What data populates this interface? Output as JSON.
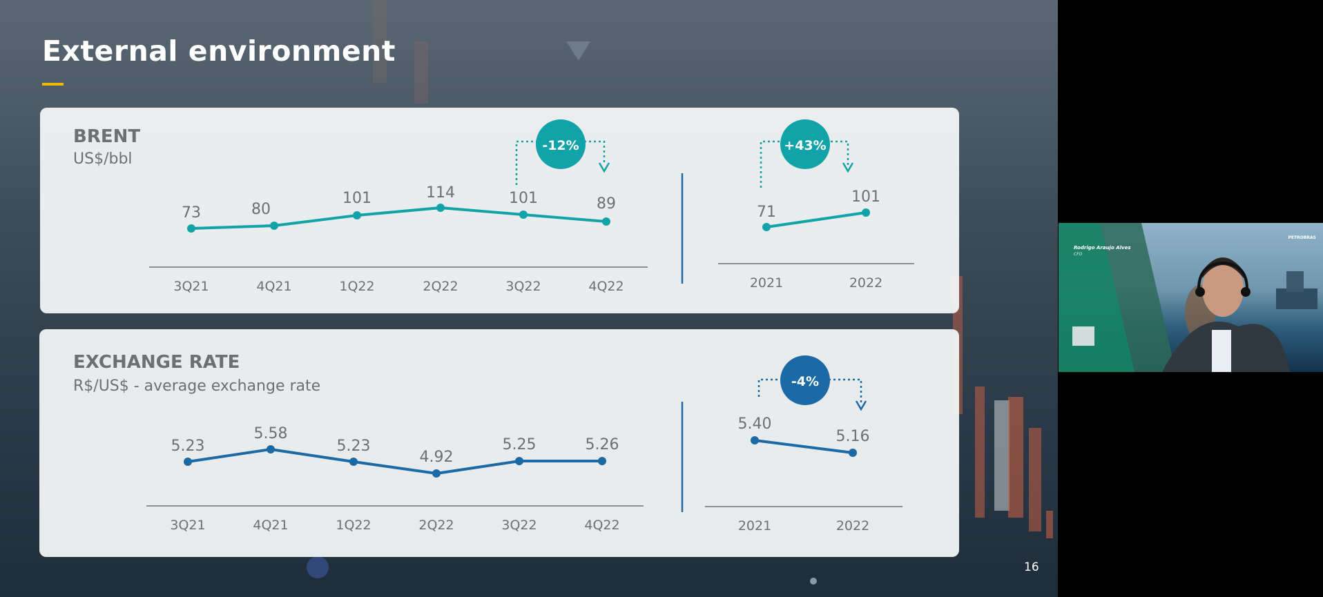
{
  "slide": {
    "title": "External environment",
    "page_number": "16",
    "accent_color": "#f2b705"
  },
  "brent": {
    "title": "BRENT",
    "unit": "US$/bbl",
    "quarterly": {
      "categories": [
        "3Q21",
        "4Q21",
        "1Q22",
        "2Q22",
        "3Q22",
        "4Q22"
      ],
      "values": [
        "73",
        "80",
        "101",
        "114",
        "101",
        "89"
      ],
      "change_badge": "-12%"
    },
    "annual": {
      "categories": [
        "2021",
        "2022"
      ],
      "values": [
        "71",
        "101"
      ],
      "change_badge": "+43%"
    },
    "color": "#11a3a8"
  },
  "exchange": {
    "title": "EXCHANGE RATE",
    "unit": "R$/US$ - average exchange rate",
    "quarterly": {
      "categories": [
        "3Q21",
        "4Q21",
        "1Q22",
        "2Q22",
        "3Q22",
        "4Q22"
      ],
      "values": [
        "5.23",
        "5.58",
        "5.23",
        "4.92",
        "5.25",
        "5.26"
      ]
    },
    "annual": {
      "categories": [
        "2021",
        "2022"
      ],
      "values": [
        "5.40",
        "5.16"
      ],
      "change_badge": "-4%"
    },
    "color": "#1b6aa5"
  },
  "video": {
    "name": "Rodrigo Araujo Alves",
    "role": "CFO",
    "logo": "PETROBRAS"
  },
  "chart_data": [
    {
      "type": "line",
      "title": "BRENT",
      "ylabel": "US$/bbl",
      "categories": [
        "3Q21",
        "4Q21",
        "1Q22",
        "2Q22",
        "3Q22",
        "4Q22"
      ],
      "values": [
        73,
        80,
        101,
        114,
        101,
        89
      ],
      "annotations": [
        "-12%"
      ]
    },
    {
      "type": "line",
      "title": "BRENT",
      "ylabel": "US$/bbl",
      "categories": [
        "2021",
        "2022"
      ],
      "values": [
        71,
        101
      ],
      "annotations": [
        "+43%"
      ]
    },
    {
      "type": "line",
      "title": "EXCHANGE RATE",
      "ylabel": "R$/US$ - average exchange rate",
      "categories": [
        "3Q21",
        "4Q21",
        "1Q22",
        "2Q22",
        "3Q22",
        "4Q22"
      ],
      "values": [
        5.23,
        5.58,
        5.23,
        4.92,
        5.25,
        5.26
      ]
    },
    {
      "type": "line",
      "title": "EXCHANGE RATE",
      "ylabel": "R$/US$ - average exchange rate",
      "categories": [
        "2021",
        "2022"
      ],
      "values": [
        5.4,
        5.16
      ],
      "annotations": [
        "-4%"
      ]
    }
  ]
}
